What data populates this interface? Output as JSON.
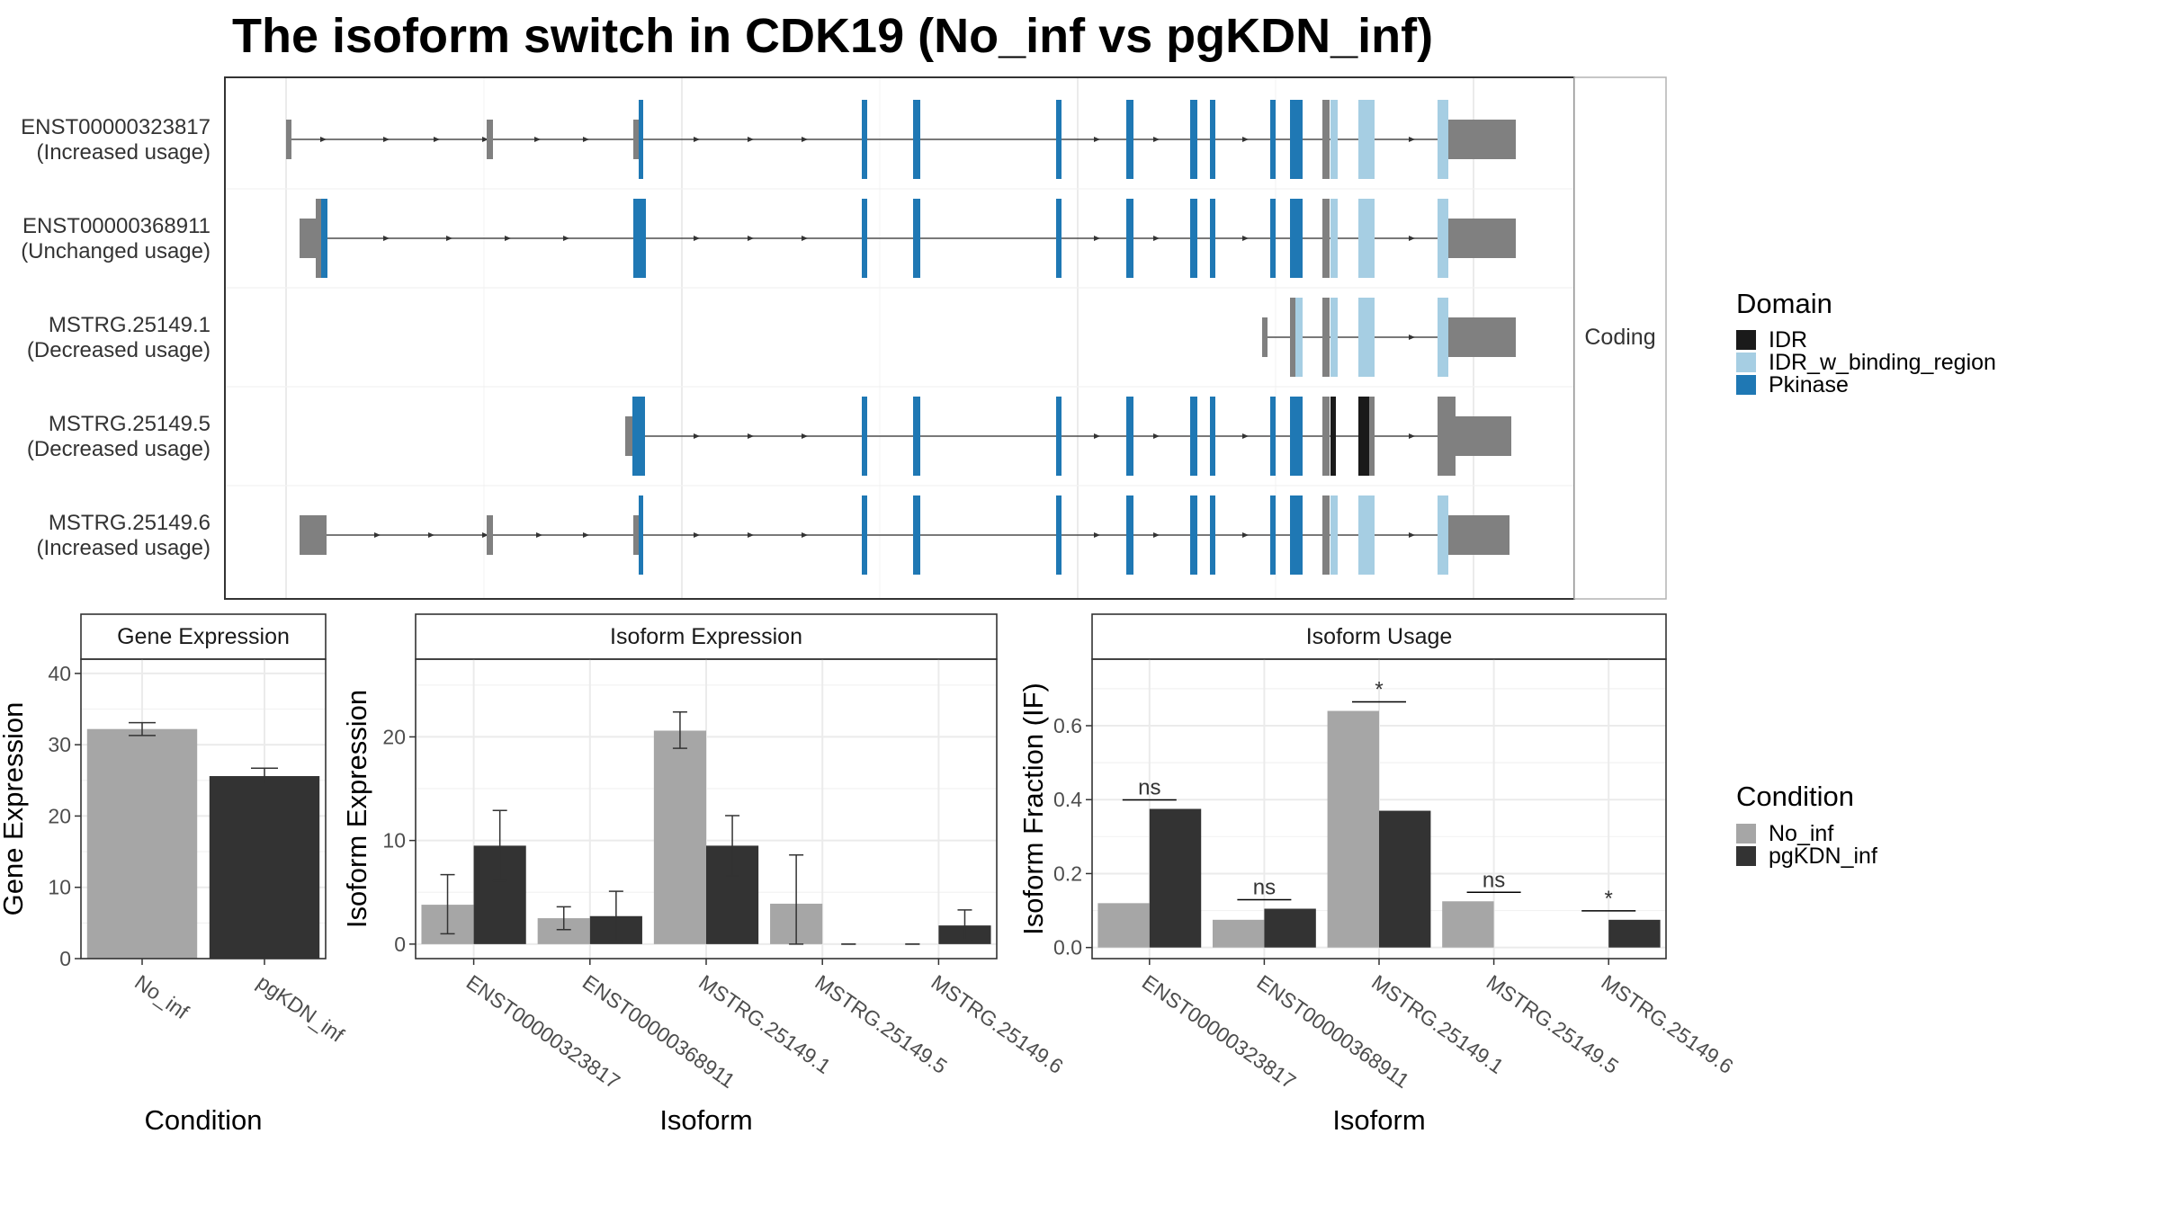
{
  "title": "The isoform switch in CDK19 (No_inf vs pgKDN_inf)",
  "structure": {
    "facet_label": "Coding",
    "isoforms": [
      {
        "id": "ENST00000323817",
        "usage": "(Increased usage)"
      },
      {
        "id": "ENST00000368911",
        "usage": "(Unchanged usage)"
      },
      {
        "id": "MSTRG.25149.1",
        "usage": "(Decreased usage)"
      },
      {
        "id": "MSTRG.25149.5",
        "usage": "(Decreased usage)"
      },
      {
        "id": "MSTRG.25149.6",
        "usage": "(Increased usage)"
      }
    ],
    "legend": {
      "title": "Domain",
      "items": [
        {
          "label": "IDR",
          "color": "#1a1a1a"
        },
        {
          "label": "IDR_w_binding_region",
          "color": "#a6cee3"
        },
        {
          "label": "Pkinase",
          "color": "#1f78b4"
        }
      ]
    }
  },
  "chart_data": [
    {
      "type": "bar",
      "strip": "Gene Expression",
      "xlabel": "Condition",
      "ylabel": "Gene Expression",
      "categories": [
        "No_inf",
        "pgKDN_inf"
      ],
      "values": [
        32.2,
        25.6
      ],
      "errors": [
        [
          31.3,
          33.1
        ],
        [
          24.5,
          26.7
        ]
      ],
      "ylim": [
        0,
        42
      ],
      "yticks": [
        0,
        10,
        20,
        30,
        40
      ]
    },
    {
      "type": "bar",
      "strip": "Isoform Expression",
      "xlabel": "Isoform",
      "ylabel": "Isoform Expression",
      "categories": [
        "ENST00000323817",
        "ENST00000368911",
        "MSTRG.25149.1",
        "MSTRG.25149.5",
        "MSTRG.25149.6"
      ],
      "series": [
        {
          "name": "No_inf",
          "values": [
            3.8,
            2.5,
            20.6,
            3.9,
            0.0
          ],
          "errors": [
            [
              1.0,
              6.7
            ],
            [
              1.4,
              3.6
            ],
            [
              18.9,
              22.4
            ],
            [
              0.0,
              8.6
            ],
            [
              0.0,
              0.0
            ]
          ]
        },
        {
          "name": "pgKDN_inf",
          "values": [
            9.5,
            2.7,
            9.5,
            0.0,
            1.8
          ],
          "errors": [
            [
              6.1,
              12.9
            ],
            [
              0.3,
              5.1
            ],
            [
              6.6,
              12.4
            ],
            [
              0.0,
              0.0
            ],
            [
              0.4,
              3.3
            ]
          ]
        }
      ],
      "ylim": [
        -1.4,
        27.5
      ],
      "yticks": [
        0,
        10,
        20
      ]
    },
    {
      "type": "bar",
      "strip": "Isoform Usage",
      "xlabel": "Isoform",
      "ylabel": "Isoform Fraction (IF)",
      "categories": [
        "ENST00000323817",
        "ENST00000368911",
        "MSTRG.25149.1",
        "MSTRG.25149.5",
        "MSTRG.25149.6"
      ],
      "series": [
        {
          "name": "No_inf",
          "values": [
            0.12,
            0.075,
            0.64,
            0.125,
            0.0
          ]
        },
        {
          "name": "pgKDN_inf",
          "values": [
            0.375,
            0.105,
            0.37,
            0.0,
            0.075
          ]
        }
      ],
      "significance": [
        "ns",
        "ns",
        "*",
        "ns",
        "*"
      ],
      "ylim": [
        -0.03,
        0.78
      ],
      "yticks": [
        0.0,
        0.2,
        0.4,
        0.6
      ]
    }
  ],
  "condition_legend": {
    "title": "Condition",
    "items": [
      {
        "label": "No_inf",
        "color": "#a6a6a6"
      },
      {
        "label": "pgKDN_inf",
        "color": "#333333"
      }
    ]
  }
}
